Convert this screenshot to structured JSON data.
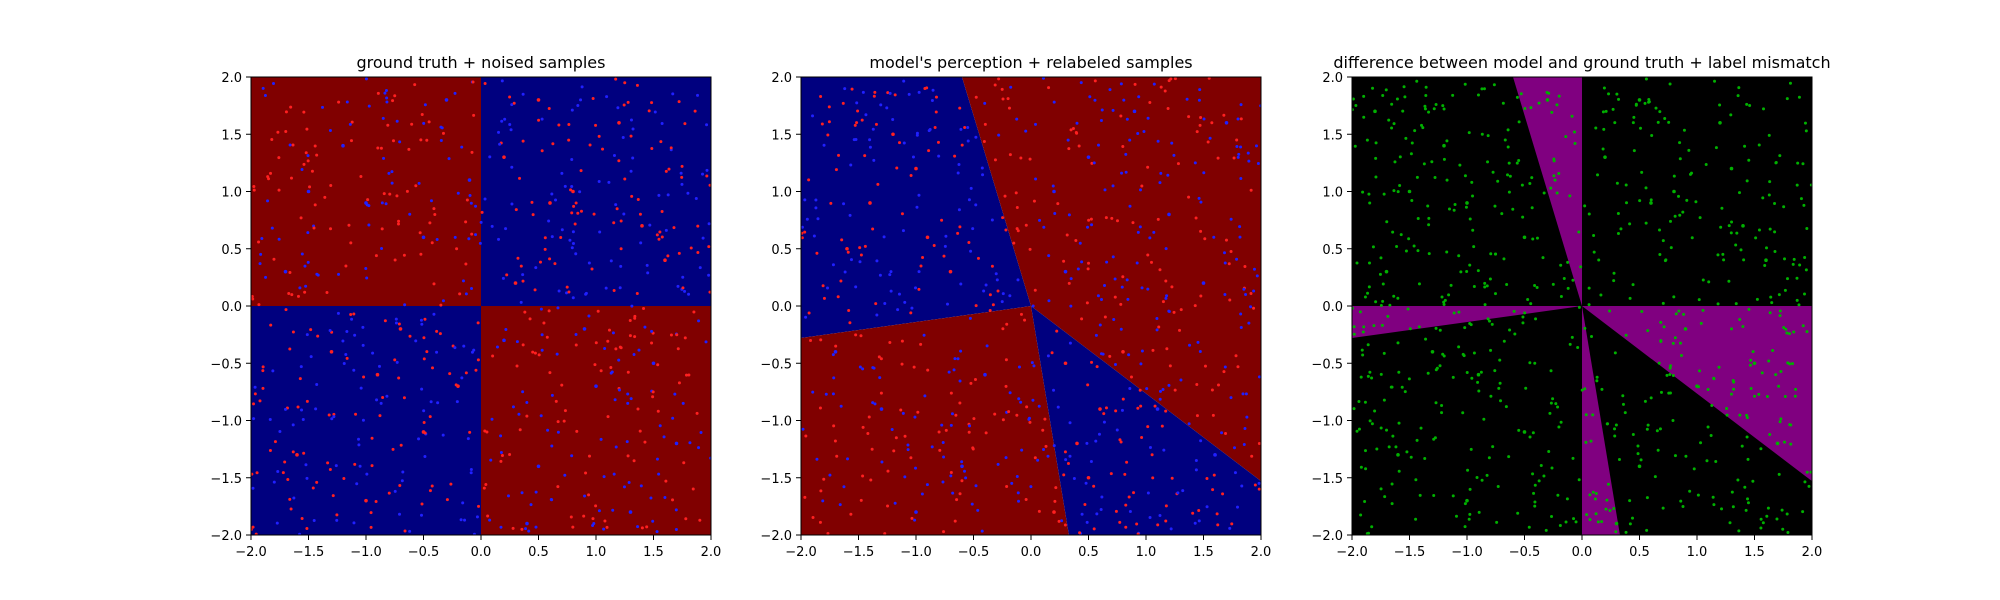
{
  "chart_data": [
    {
      "type": "scatter",
      "title": "ground truth + noised samples",
      "xlabel": "",
      "ylabel": "",
      "xlim": [
        -2.0,
        2.0
      ],
      "ylim": [
        -2.0,
        2.0
      ],
      "xticks": [
        "−2.0",
        "−1.5",
        "−1.0",
        "−0.5",
        "0.0",
        "0.5",
        "1.0",
        "1.5",
        "2.0"
      ],
      "yticks": [
        "2.0",
        "1.5",
        "1.0",
        "0.5",
        "0.0",
        "−0.5",
        "−1.0",
        "−1.5",
        "−2.0"
      ],
      "background": {
        "kind": "quadrants",
        "colors": {
          "positive": "#800000",
          "negative": "#00007f"
        },
        "note_rule": "x*y>0 ⇒ red, x*y<0 ⇒ blue"
      },
      "series": [
        {
          "color": "#ff2020",
          "points": [
            [
              0.2,
              1.3
            ],
            [
              0.6,
              0.9
            ],
            [
              1.2,
              1.6
            ],
            [
              1.6,
              0.4
            ],
            [
              0.3,
              0.2
            ],
            [
              -0.9,
              -0.6
            ],
            [
              -1.3,
              -0.4
            ],
            [
              -0.5,
              -1.1
            ],
            [
              -1.6,
              -1.3
            ],
            [
              -0.2,
              -0.7
            ],
            [
              0.8,
              1.0
            ],
            [
              1.4,
              0.7
            ],
            [
              -1.0,
              -1.7
            ],
            [
              -0.7,
              -0.2
            ],
            [
              0.5,
              1.8
            ]
          ]
        },
        {
          "color": "#2020ff",
          "points": [
            [
              -1.2,
              1.4
            ],
            [
              -0.5,
              0.6
            ],
            [
              -1.7,
              0.3
            ],
            [
              -0.3,
              1.8
            ],
            [
              1.0,
              -0.7
            ],
            [
              0.5,
              -1.4
            ],
            [
              1.7,
              -1.2
            ],
            [
              0.2,
              -0.3
            ],
            [
              1.3,
              -1.8
            ],
            [
              -1.0,
              0.9
            ],
            [
              0.9,
              -0.2
            ],
            [
              -0.1,
              1.1
            ],
            [
              1.5,
              -0.5
            ],
            [
              0.4,
              -1.9
            ],
            [
              -1.5,
              1.0
            ]
          ]
        }
      ]
    },
    {
      "type": "scatter",
      "title": "model's perception + relabeled samples",
      "xlabel": "",
      "ylabel": "",
      "xlim": [
        -2.0,
        2.0
      ],
      "ylim": [
        -2.0,
        2.0
      ],
      "xticks": [
        "−2.0",
        "−1.5",
        "−1.0",
        "−0.5",
        "0.0",
        "0.5",
        "1.0",
        "1.5",
        "2.0"
      ],
      "yticks": [
        "2.0",
        "1.5",
        "1.0",
        "0.5",
        "0.0",
        "−0.5",
        "−1.0",
        "−1.5",
        "−2.0"
      ],
      "background": {
        "kind": "rotated-quadrants",
        "colors": {
          "positive": "#800000",
          "negative": "#00007f"
        },
        "boundary_points": [
          [
            -0.6,
            2.0
          ],
          [
            0.33,
            -2.0
          ],
          [
            -2.0,
            -0.28
          ],
          [
            2.0,
            -1.53
          ]
        ]
      },
      "series": [
        {
          "color": "#ff2020",
          "points": [
            [
              -1.2,
              1.5
            ],
            [
              -0.9,
              0.6
            ],
            [
              -1.4,
              0.9
            ],
            [
              -0.7,
              0.3
            ],
            [
              0.3,
              -0.5
            ],
            [
              0.6,
              -0.9
            ],
            [
              0.5,
              -1.5
            ],
            [
              0.2,
              -1.8
            ],
            [
              0.8,
              -0.4
            ],
            [
              -1.0,
              1.2
            ],
            [
              0.4,
              -1.2
            ],
            [
              -1.6,
              0.5
            ]
          ]
        },
        {
          "color": "#2020ff",
          "points": [
            [
              0.5,
              1.3
            ],
            [
              1.2,
              0.8
            ],
            [
              1.7,
              1.6
            ],
            [
              0.3,
              0.3
            ],
            [
              -1.3,
              -0.9
            ],
            [
              -0.6,
              -1.4
            ],
            [
              -1.7,
              -0.4
            ],
            [
              1.5,
              0.2
            ],
            [
              0.9,
              1.7
            ],
            [
              -0.4,
              -0.6
            ],
            [
              -1.0,
              -1.8
            ],
            [
              1.1,
              -0.9
            ],
            [
              1.6,
              -1.3
            ],
            [
              0.2,
              1.0
            ]
          ]
        }
      ]
    },
    {
      "type": "scatter",
      "title": "difference between model and ground truth + label mismatch",
      "xlabel": "",
      "ylabel": "",
      "xlim": [
        -2.0,
        2.0
      ],
      "ylim": [
        -2.0,
        2.0
      ],
      "xticks": [
        "−2.0",
        "−1.5",
        "−1.0",
        "−0.5",
        "0.0",
        "0.5",
        "1.0",
        "1.5",
        "2.0"
      ],
      "yticks": [
        "2.0",
        "1.5",
        "1.0",
        "0.5",
        "0.0",
        "−0.5",
        "−1.0",
        "−1.5",
        "−2.0"
      ],
      "background": {
        "kind": "difference",
        "colors": {
          "match": "#000000",
          "mismatch": "#800080"
        }
      },
      "series": [
        {
          "color": "#00b000",
          "points": [
            [
              0.2,
              1.3
            ],
            [
              0.6,
              0.9
            ],
            [
              1.2,
              1.6
            ],
            [
              1.6,
              0.4
            ],
            [
              -0.9,
              -0.6
            ],
            [
              -1.3,
              -0.4
            ],
            [
              -0.5,
              -1.1
            ],
            [
              -1.6,
              -1.3
            ],
            [
              0.8,
              1.0
            ],
            [
              1.4,
              0.7
            ],
            [
              -1.0,
              -1.7
            ],
            [
              0.5,
              1.8
            ],
            [
              -1.2,
              1.4
            ],
            [
              -0.5,
              0.6
            ],
            [
              -1.7,
              0.3
            ],
            [
              1.0,
              -0.7
            ],
            [
              0.5,
              -1.4
            ],
            [
              1.7,
              -1.2
            ],
            [
              -1.0,
              0.9
            ],
            [
              0.9,
              -0.2
            ],
            [
              1.5,
              -0.5
            ],
            [
              -1.5,
              1.0
            ],
            [
              -0.3,
              1.8
            ],
            [
              0.3,
              -1.9
            ],
            [
              -1.8,
              1.7
            ],
            [
              1.3,
              1.2
            ]
          ]
        }
      ]
    }
  ]
}
